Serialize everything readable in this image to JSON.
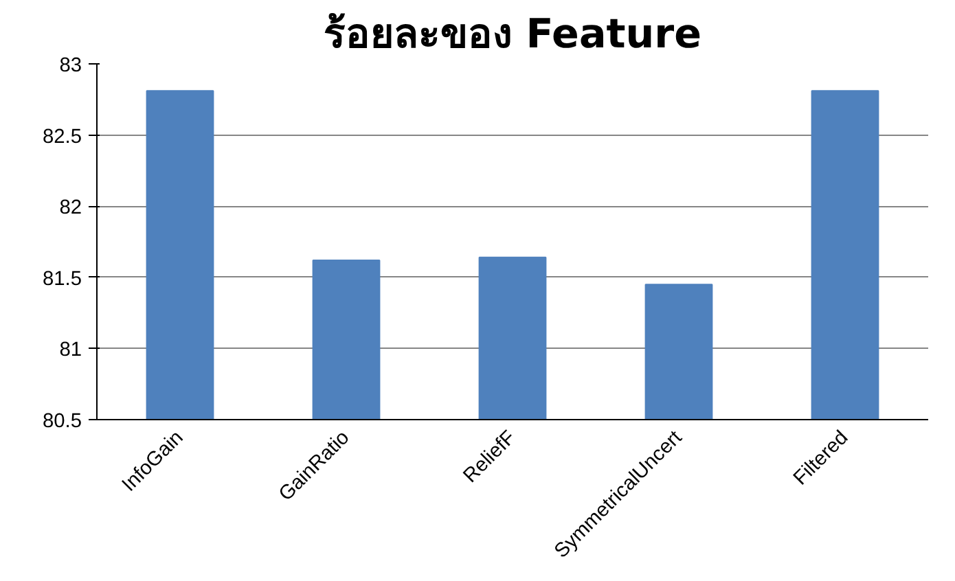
{
  "chart_data": {
    "type": "bar",
    "title": "ร้อยละของ Feature",
    "categories": [
      "InfoGain",
      "GainRatio",
      "ReliefF",
      "SymmetricalUncert",
      "Filtered"
    ],
    "values": [
      82.81,
      81.62,
      81.64,
      81.45,
      82.81
    ],
    "color": "#4f81bd",
    "ylim": [
      80.5,
      83
    ],
    "yticks": [
      80.5,
      81,
      {
        "value": 81.5,
        "label": "81.5"
      },
      82,
      {
        "value": 82.5,
        "label": "82.5"
      },
      83
    ],
    "grid": "y"
  }
}
